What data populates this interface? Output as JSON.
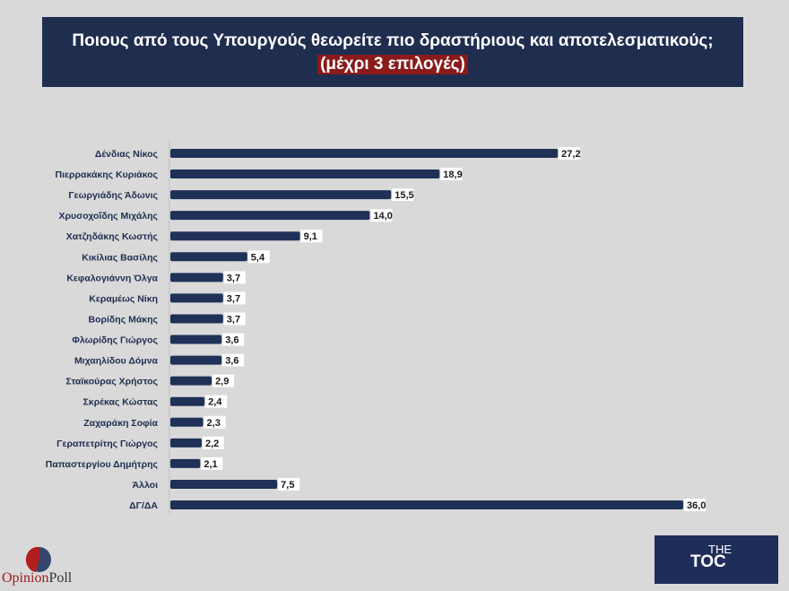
{
  "header": {
    "title": "Ποιους από τους Υπουργούς θεωρείτε πιο δραστήριους και αποτελεσματικούς;",
    "subtitle": "(μέχρι 3 επιλογές)"
  },
  "chart_data": {
    "type": "bar",
    "orientation": "horizontal",
    "categories": [
      "Δένδιας Νίκος",
      "Πιερρακάκης Κυριάκος",
      "Γεωργιάδης Άδωνις",
      "Χρυσοχοΐδης Μιχάλης",
      "Χατζηδάκης Κωστής",
      "Κικίλιας Βασίλης",
      "Κεφαλογιάννη Όλγα",
      "Κεραμέως Νίκη",
      "Βορίδης Μάκης",
      "Φλωρίδης Γιώργος",
      "Μιχαηλίδου Δόμνα",
      "Σταϊκούρας Χρήστος",
      "Σκρέκας Κώστας",
      "Ζαχαράκη Σοφία",
      "Γεραπετρίτης Γιώργος",
      "Παπαστεργίου Δημήτρης",
      "Άλλοι",
      "ΔΓ/ΔΑ"
    ],
    "values": [
      27.2,
      18.9,
      15.5,
      14.0,
      9.1,
      5.4,
      3.7,
      3.7,
      3.7,
      3.6,
      3.6,
      2.9,
      2.4,
      2.3,
      2.2,
      2.1,
      7.5,
      36.0
    ],
    "data_labels": [
      "27,2",
      "18,9",
      "15,5",
      "14,0",
      "9,1",
      "5,4",
      "3,7",
      "3,7",
      "3,7",
      "3,6",
      "3,6",
      "2,9",
      "2,4",
      "2,3",
      "2,2",
      "2,1",
      "7,5",
      "36,0"
    ],
    "bar_color": "#1f3157",
    "grid": false
  },
  "logos": {
    "opinionpoll": "OpinionPoll",
    "thetoc": "THE TOC"
  }
}
